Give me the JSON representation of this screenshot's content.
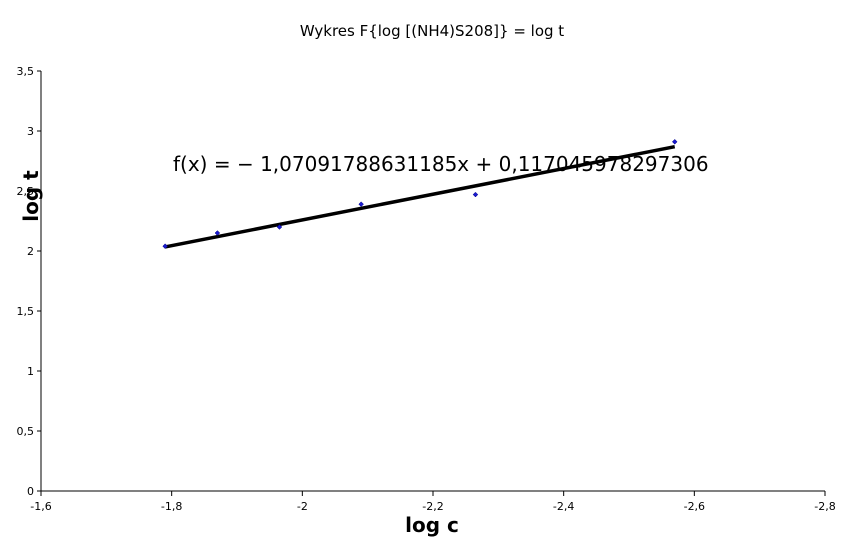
{
  "chart_data": {
    "type": "scatter",
    "title": "Wykres F{log [(NH4)S208]} = log t",
    "xlabel": "log c",
    "ylabel": "log t",
    "xlim": [
      -1.6,
      -2.8
    ],
    "ylim": [
      0,
      3.5
    ],
    "x_reversed": true,
    "x_ticks": [
      -1.6,
      -1.8,
      -2,
      -2.2,
      -2.4,
      -2.6,
      -2.8
    ],
    "x_tick_labels": [
      "-1,6",
      "-1,8",
      "-2",
      "-2,2",
      "-2,4",
      "-2,6",
      "-2,8"
    ],
    "y_ticks": [
      0,
      0.5,
      1,
      1.5,
      2,
      2.5,
      3,
      3.5
    ],
    "y_tick_labels": [
      "0",
      "0,5",
      "1",
      "1,5",
      "2",
      "2,5",
      "3",
      "3,5"
    ],
    "grid": false,
    "legend": "none",
    "point_color": "#1b1bd0",
    "series": [
      {
        "x": [
          -1.79,
          -1.87,
          -1.965,
          -2.09,
          -2.265,
          -2.57
        ],
        "y": [
          2.04,
          2.15,
          2.2,
          2.39,
          2.47,
          2.91
        ]
      }
    ],
    "trendline": {
      "slope": -1.07091788631185,
      "intercept": 0.117045978297306,
      "x_range": [
        -1.79,
        -2.57
      ],
      "color": "#000000"
    },
    "equation": "f(x) = − 1,07091788631185x + 0,117045978297306"
  }
}
